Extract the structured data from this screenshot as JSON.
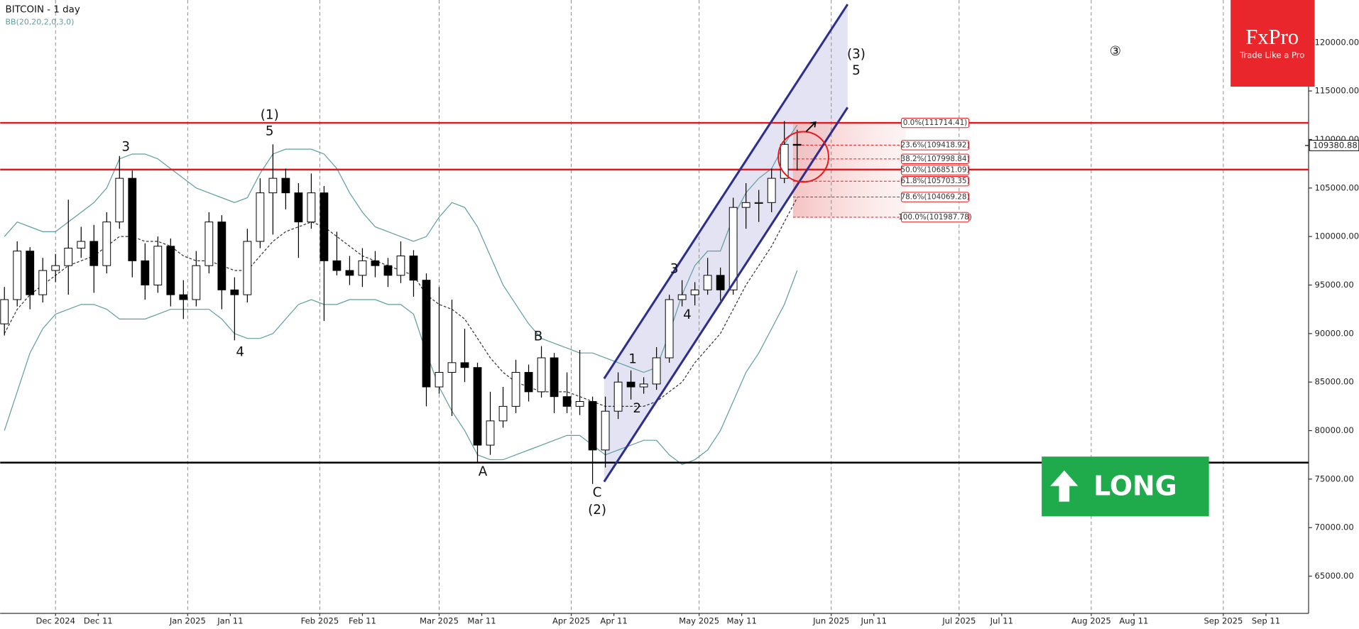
{
  "chart_data": {
    "type": "candlestick",
    "title": "BITCOIN - 1 day",
    "subtitle": "BB(20,20,2,0,3,0)",
    "x": [
      "2024-11-19",
      "2024-11-22",
      "2024-11-25",
      "2024-11-28",
      "2024-12-01",
      "2024-12-04",
      "2024-12-07",
      "2024-12-10",
      "2024-12-13",
      "2024-12-16",
      "2024-12-19",
      "2024-12-22",
      "2024-12-25",
      "2024-12-28",
      "2024-12-31",
      "2025-01-03",
      "2025-01-06",
      "2025-01-09",
      "2025-01-12",
      "2025-01-15",
      "2025-01-18",
      "2025-01-21",
      "2025-01-24",
      "2025-01-27",
      "2025-01-30",
      "2025-02-02",
      "2025-02-05",
      "2025-02-08",
      "2025-02-11",
      "2025-02-14",
      "2025-02-17",
      "2025-02-20",
      "2025-02-23",
      "2025-02-26",
      "2025-03-01",
      "2025-03-04",
      "2025-03-07",
      "2025-03-10",
      "2025-03-13",
      "2025-03-16",
      "2025-03-19",
      "2025-03-22",
      "2025-03-25",
      "2025-03-28",
      "2025-03-31",
      "2025-04-03",
      "2025-04-06",
      "2025-04-09",
      "2025-04-12",
      "2025-04-15",
      "2025-04-18",
      "2025-04-21",
      "2025-04-24",
      "2025-04-27",
      "2025-04-30",
      "2025-05-03",
      "2025-05-06",
      "2025-05-09",
      "2025-05-12",
      "2025-05-15",
      "2025-05-18",
      "2025-05-21",
      "2025-05-24"
    ],
    "open": [
      91000,
      93500,
      98500,
      94000,
      96500,
      97000,
      98800,
      99500,
      97000,
      101500,
      106000,
      97500,
      95000,
      99000,
      94000,
      93500,
      97000,
      101500,
      94500,
      94000,
      99500,
      104500,
      106000,
      104500,
      101500,
      104500,
      97500,
      96500,
      96000,
      97500,
      97000,
      96000,
      98000,
      95500,
      84500,
      86000,
      87000,
      86500,
      78500,
      81000,
      82500,
      86000,
      84000,
      87500,
      83500,
      82500,
      83000,
      78000,
      82000,
      85000,
      84500,
      84800,
      87500,
      93500,
      94000,
      94500,
      96000,
      94500,
      103000,
      103500,
      103500,
      106000,
      109500
    ],
    "high": [
      94800,
      99500,
      98900,
      97800,
      98200,
      103800,
      101000,
      101200,
      102500,
      108300,
      106800,
      99300,
      100000,
      99800,
      95500,
      98500,
      102500,
      102200,
      95800,
      100800,
      106000,
      109500,
      107000,
      105500,
      106500,
      105200,
      100500,
      98000,
      98800,
      98500,
      97800,
      99500,
      98600,
      96200,
      94800,
      93500,
      90500,
      87000,
      84000,
      84500,
      87300,
      86800,
      88700,
      88000,
      86000,
      88300,
      83500,
      83500,
      86000,
      86200,
      85500,
      88600,
      94000,
      95500,
      95300,
      97800,
      96800,
      104000,
      105500,
      104800,
      107000,
      111900,
      111000
    ],
    "low": [
      89800,
      92800,
      92500,
      93200,
      95300,
      94000,
      97800,
      94200,
      96200,
      100800,
      95800,
      93500,
      94200,
      92800,
      91500,
      92800,
      96200,
      92500,
      89300,
      93200,
      98800,
      100200,
      102800,
      97800,
      100800,
      91300,
      96000,
      95000,
      94800,
      95800,
      94800,
      95200,
      93800,
      82500,
      83800,
      81500,
      85000,
      76700,
      77500,
      80300,
      81800,
      83000,
      83400,
      81800,
      81800,
      81600,
      74500,
      76200,
      81200,
      83200,
      83800,
      84200,
      87000,
      92800,
      92900,
      94000,
      93400,
      94000,
      100800,
      101500,
      102500,
      105500,
      106800
    ],
    "close": [
      93500,
      98500,
      94000,
      96500,
      97000,
      98800,
      99500,
      97000,
      101500,
      106000,
      97500,
      95000,
      99000,
      94000,
      93500,
      97000,
      101500,
      94500,
      94000,
      99500,
      104500,
      106000,
      104500,
      101500,
      104500,
      97500,
      96500,
      96000,
      97500,
      97000,
      96000,
      98000,
      95500,
      84500,
      86000,
      87000,
      86500,
      78500,
      81000,
      82500,
      86000,
      84000,
      87500,
      83500,
      82500,
      83000,
      78000,
      82000,
      85000,
      84500,
      84800,
      87500,
      93500,
      94000,
      94500,
      96000,
      94500,
      103000,
      103500,
      103500,
      106000,
      109500,
      109400
    ],
    "up_color": "#ffffff",
    "down_color": "#000000",
    "bands": {
      "color": "#5f9ea0",
      "upper": [
        100000,
        101500,
        101000,
        100500,
        100500,
        101500,
        102500,
        103500,
        105000,
        108000,
        108500,
        108500,
        108000,
        107000,
        106000,
        105000,
        104500,
        104000,
        103500,
        104000,
        106500,
        108500,
        109000,
        109000,
        109000,
        108500,
        107000,
        104500,
        102500,
        101000,
        100500,
        100000,
        99500,
        100000,
        102000,
        103500,
        103000,
        101000,
        98000,
        95000,
        93000,
        91000,
        89500,
        89000,
        88500,
        88000,
        88000,
        87500,
        87000,
        86500,
        86000,
        86500,
        90000,
        94000,
        97000,
        98500,
        98500,
        102000,
        104500,
        106000,
        107000,
        109500,
        111500
      ],
      "middle": [
        90000,
        92500,
        94000,
        95000,
        96000,
        97000,
        97500,
        98000,
        99000,
        100000,
        100000,
        99500,
        99500,
        99000,
        98000,
        97500,
        97500,
        97000,
        96500,
        96500,
        98000,
        99500,
        100500,
        101000,
        101500,
        101000,
        100000,
        99000,
        98000,
        97500,
        97000,
        96500,
        96000,
        94000,
        93000,
        92500,
        91500,
        89500,
        87500,
        86000,
        85000,
        84500,
        84000,
        84000,
        84000,
        83500,
        83000,
        82500,
        82500,
        82500,
        82500,
        83000,
        84000,
        85000,
        87000,
        88500,
        90000,
        92500,
        95000,
        97000,
        99000,
        101500,
        104000
      ],
      "lower": [
        80000,
        84000,
        88000,
        90500,
        92000,
        92500,
        93000,
        93000,
        92500,
        91500,
        91500,
        91500,
        92000,
        92500,
        92500,
        92500,
        92500,
        91500,
        90000,
        89500,
        89500,
        90000,
        91500,
        93000,
        93500,
        93000,
        93000,
        93500,
        93500,
        93500,
        93000,
        93000,
        92000,
        88000,
        84500,
        82000,
        80000,
        77500,
        77000,
        77000,
        77500,
        78000,
        78500,
        79000,
        79500,
        79500,
        78500,
        77500,
        78000,
        78500,
        79000,
        79000,
        77500,
        76500,
        77000,
        78000,
        80000,
        83000,
        86000,
        88000,
        90500,
        93000,
        96500
      ]
    },
    "xlim": [
      "2024-11-18",
      "2025-09-21"
    ],
    "ylim": [
      61160,
      124375
    ],
    "xticks": [
      {
        "value": "2024-12-01",
        "label": "Dec 2024"
      },
      {
        "value": "2025-01-01",
        "label": "Jan 2025"
      },
      {
        "value": "2025-02-01",
        "label": "Feb 2025"
      },
      {
        "value": "2025-03-01",
        "label": "Mar 2025"
      },
      {
        "value": "2025-04-01",
        "label": "Apr 2025"
      },
      {
        "value": "2025-05-01",
        "label": "May 2025"
      },
      {
        "value": "2025-06-01",
        "label": "Jun 2025"
      },
      {
        "value": "2025-07-01",
        "label": "Jul 2025"
      },
      {
        "value": "2025-08-01",
        "label": "Aug 2025"
      },
      {
        "value": "2025-09-01",
        "label": "Sep 2025"
      }
    ],
    "xticks_minor": [
      {
        "value": "2024-12-11",
        "label": "Dec 11"
      },
      {
        "value": "2025-01-11",
        "label": "Jan 11"
      },
      {
        "value": "2025-02-11",
        "label": "Feb 11"
      },
      {
        "value": "2025-03-11",
        "label": "Mar 11"
      },
      {
        "value": "2025-04-11",
        "label": "Apr 11"
      },
      {
        "value": "2025-05-11",
        "label": "May 11"
      },
      {
        "value": "2025-06-11",
        "label": "Jun 11"
      },
      {
        "value": "2025-07-11",
        "label": "Jul 11"
      },
      {
        "value": "2025-08-11",
        "label": "Aug 11"
      },
      {
        "value": "2025-09-11",
        "label": "Sep 11"
      }
    ],
    "yticks": [
      {
        "value": 120000,
        "label": "120000.00"
      },
      {
        "value": 115000,
        "label": "115000.00"
      },
      {
        "value": 110000,
        "label": "110000.00"
      },
      {
        "value": 105000,
        "label": "105000.00"
      },
      {
        "value": 100000,
        "label": "100000.00"
      },
      {
        "value": 95000,
        "label": "95000.00"
      },
      {
        "value": 90000,
        "label": "90000.00"
      },
      {
        "value": 85000,
        "label": "85000.00"
      },
      {
        "value": 80000,
        "label": "80000.00"
      },
      {
        "value": 75000,
        "label": "75000.00"
      },
      {
        "value": 70000,
        "label": "70000.00"
      },
      {
        "value": 65000,
        "label": "65000.00"
      }
    ],
    "grid": true,
    "levels": [
      {
        "value": 111714.41,
        "color": "#e8161b"
      },
      {
        "value": 106900,
        "color": "#e8161b"
      },
      {
        "value": 76700,
        "color": "#000000"
      }
    ],
    "fibonacci": {
      "color": "#e8161b",
      "values": [
        111714.41,
        109418.92,
        107998.84,
        106851.09,
        105703.35,
        104069.28,
        101987.78
      ],
      "value_labels": [
        "0.0%(111714.41)",
        "23.6%(109418.92)",
        "38.2%(107998.84)",
        "50.0%(106851.09)",
        "61.8%(105703.35)",
        "78.6%(104069.28)",
        "100.0%(101987.78)"
      ]
    },
    "last_price": {
      "value": 109380.88,
      "label": "109380.88"
    },
    "annotations": [
      "(1)",
      "5",
      "3",
      "4",
      "B",
      "A",
      "C",
      "(2)",
      "1",
      "2",
      "3",
      "4",
      "(3)",
      "5",
      "③"
    ]
  },
  "logo": {
    "name": "FxPro",
    "tagline": "Trade Like a Pro"
  },
  "signal": "LONG"
}
